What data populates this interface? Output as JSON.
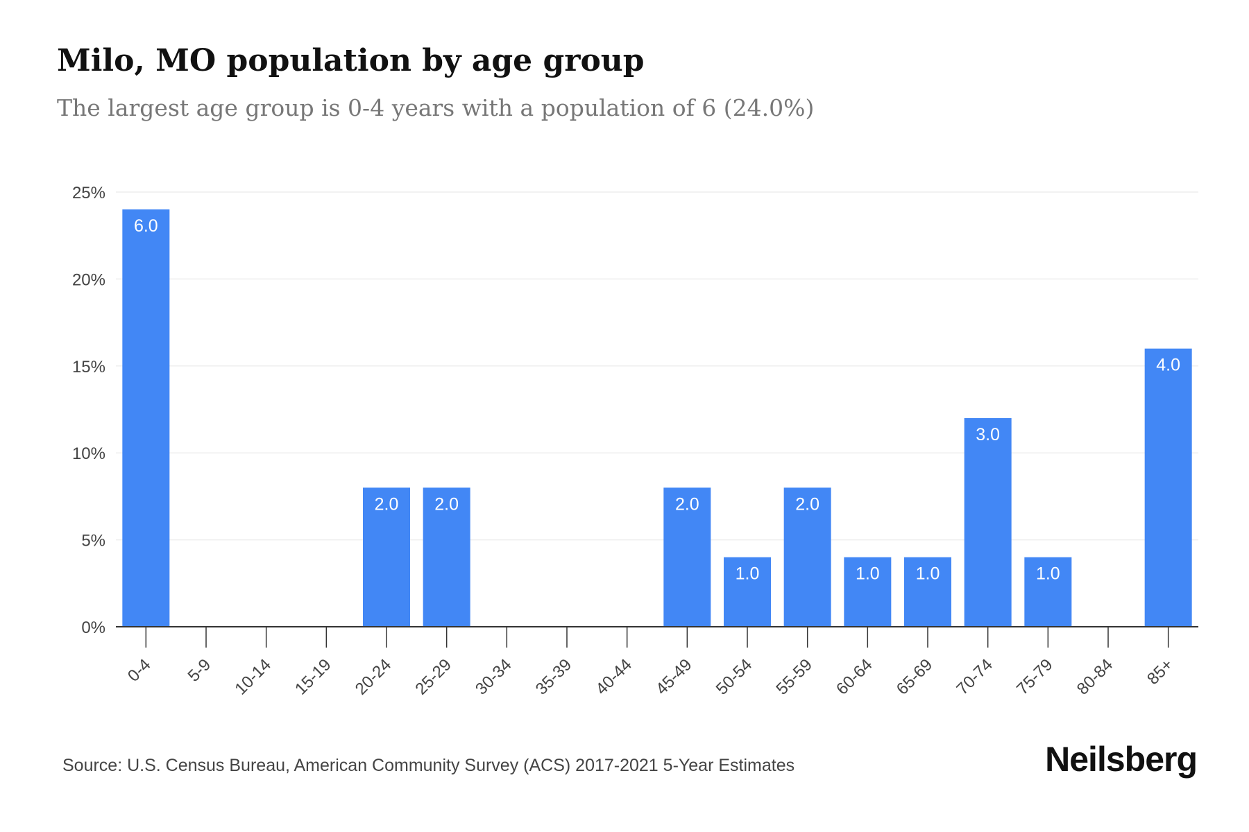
{
  "header": {
    "title": "Milo, MO population by age group",
    "subtitle": "The largest age group is 0-4 years with a population of 6 (24.0%)"
  },
  "footer": {
    "source": "Source: U.S. Census Bureau, American Community Survey (ACS) 2017-2021 5-Year Estimates",
    "brand": "Neilsberg"
  },
  "colors": {
    "bar": "#4287f5",
    "bar_label": "#ffffff",
    "grid": "#eeeeee",
    "axis": "#333333",
    "tick_text": "#444444"
  },
  "chart_data": {
    "type": "bar",
    "title": "Milo, MO population by age group",
    "subtitle": "The largest age group is 0-4 years with a population of 6 (24.0%)",
    "xlabel": "",
    "ylabel": "",
    "ylim": [
      0,
      25
    ],
    "yticks": [
      0,
      5,
      10,
      15,
      20,
      25
    ],
    "ytick_labels": [
      "0%",
      "5%",
      "10%",
      "15%",
      "20%",
      "25%"
    ],
    "grid": true,
    "legend": "none",
    "categories": [
      "0-4",
      "5-9",
      "10-14",
      "15-19",
      "20-24",
      "25-29",
      "30-34",
      "35-39",
      "40-44",
      "45-49",
      "50-54",
      "55-59",
      "60-64",
      "65-69",
      "70-74",
      "75-79",
      "80-84",
      "85+"
    ],
    "values": [
      24,
      0,
      0,
      0,
      8,
      8,
      0,
      0,
      0,
      8,
      4,
      8,
      4,
      4,
      12,
      4,
      0,
      16
    ],
    "data_labels": [
      "6.0",
      "",
      "",
      "",
      "2.0",
      "2.0",
      "",
      "",
      "",
      "2.0",
      "1.0",
      "2.0",
      "1.0",
      "1.0",
      "3.0",
      "1.0",
      "",
      "4.0"
    ]
  }
}
